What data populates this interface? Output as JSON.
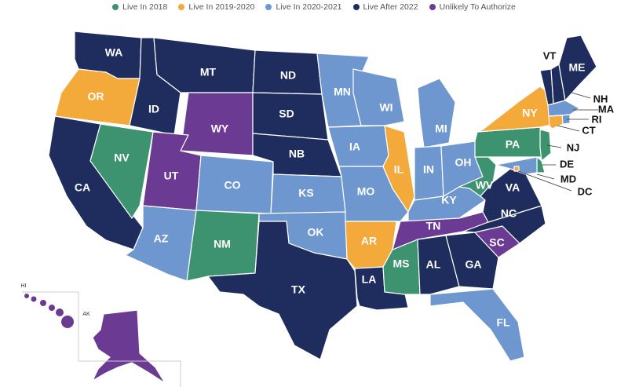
{
  "colors": {
    "live_2018": "#3d9370",
    "live_2019_2020": "#f4a93b",
    "live_2020_2021": "#6f97cf",
    "live_after_2022": "#1e2d5e",
    "unlikely": "#6b3a92",
    "water": "#ffffff"
  },
  "legend": [
    {
      "key": "live_2018",
      "label": "Live In 2018"
    },
    {
      "key": "live_2019_2020",
      "label": "Live In 2019-2020"
    },
    {
      "key": "live_2020_2021",
      "label": "Live In 2020-2021"
    },
    {
      "key": "live_after_2022",
      "label": "Live After 2022"
    },
    {
      "key": "unlikely",
      "label": "Unlikely To Authorize"
    }
  ],
  "states": {
    "WA": {
      "label": "WA",
      "category": "live_after_2022"
    },
    "OR": {
      "label": "OR",
      "category": "live_2019_2020"
    },
    "CA": {
      "label": "CA",
      "category": "live_after_2022"
    },
    "ID": {
      "label": "ID",
      "category": "live_after_2022"
    },
    "NV": {
      "label": "NV",
      "category": "live_2018"
    },
    "MT": {
      "label": "MT",
      "category": "live_after_2022"
    },
    "WY": {
      "label": "WY",
      "category": "unlikely"
    },
    "UT": {
      "label": "UT",
      "category": "unlikely"
    },
    "AZ": {
      "label": "AZ",
      "category": "live_2020_2021"
    },
    "CO": {
      "label": "CO",
      "category": "live_2020_2021"
    },
    "NM": {
      "label": "NM",
      "category": "live_2018"
    },
    "ND": {
      "label": "ND",
      "category": "live_after_2022"
    },
    "SD": {
      "label": "SD",
      "category": "live_after_2022"
    },
    "NB": {
      "label": "NB",
      "category": "live_after_2022"
    },
    "KS": {
      "label": "KS",
      "category": "live_2020_2021"
    },
    "OK": {
      "label": "OK",
      "category": "live_2020_2021"
    },
    "TX": {
      "label": "TX",
      "category": "live_after_2022"
    },
    "MN": {
      "label": "MN",
      "category": "live_2020_2021"
    },
    "IA": {
      "label": "IA",
      "category": "live_2020_2021"
    },
    "MO": {
      "label": "MO",
      "category": "live_2020_2021"
    },
    "AR": {
      "label": "AR",
      "category": "live_2019_2020"
    },
    "LA": {
      "label": "LA",
      "category": "live_after_2022"
    },
    "WI": {
      "label": "WI",
      "category": "live_2020_2021"
    },
    "IL": {
      "label": "IL",
      "category": "live_2019_2020"
    },
    "MS": {
      "label": "MS",
      "category": "live_2018"
    },
    "MI": {
      "label": "MI",
      "category": "live_2020_2021"
    },
    "IN": {
      "label": "IN",
      "category": "live_2020_2021"
    },
    "KY": {
      "label": "KY",
      "category": "live_2020_2021"
    },
    "TN": {
      "label": "TN",
      "category": "unlikely"
    },
    "AL": {
      "label": "AL",
      "category": "live_after_2022"
    },
    "OH": {
      "label": "OH",
      "category": "live_2020_2021"
    },
    "WV": {
      "label": "WV",
      "category": "live_2018"
    },
    "GA": {
      "label": "GA",
      "category": "live_after_2022"
    },
    "FL": {
      "label": "FL",
      "category": "live_2020_2021"
    },
    "SC": {
      "label": "SC",
      "category": "unlikely"
    },
    "NC": {
      "label": "NC",
      "category": "live_after_2022"
    },
    "VA": {
      "label": "VA",
      "category": "live_after_2022"
    },
    "PA": {
      "label": "PA",
      "category": "live_2018"
    },
    "NY": {
      "label": "NY",
      "category": "live_2019_2020"
    },
    "VT": {
      "label": "VT",
      "category": "live_after_2022"
    },
    "NH": {
      "label": "NH",
      "category": "live_after_2022"
    },
    "ME": {
      "label": "ME",
      "category": "live_after_2022"
    },
    "MA": {
      "label": "MA",
      "category": "live_2020_2021"
    },
    "RI": {
      "label": "RI",
      "category": "live_2020_2021"
    },
    "CT": {
      "label": "CT",
      "category": "live_2019_2020"
    },
    "NJ": {
      "label": "NJ",
      "category": "live_2018"
    },
    "DE": {
      "label": "DE",
      "category": "live_2018"
    },
    "MD": {
      "label": "MD",
      "category": "live_2020_2021"
    },
    "DC": {
      "label": "DC",
      "category": "live_2019_2020"
    },
    "HI": {
      "label": "HI",
      "category": "unlikely"
    },
    "AK": {
      "label": "AK",
      "category": "unlikely"
    }
  }
}
